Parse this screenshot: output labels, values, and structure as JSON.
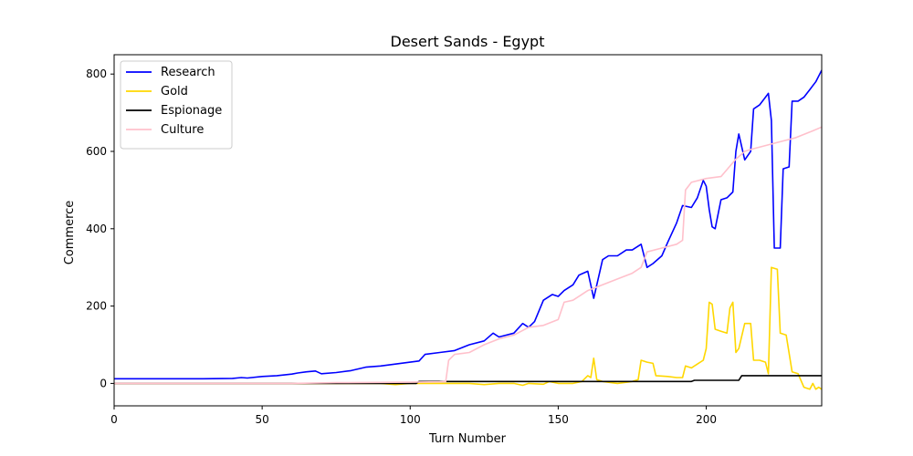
{
  "chart_data": {
    "type": "line",
    "title": "Desert Sands - Egypt",
    "xlabel": "Turn Number",
    "ylabel": "Commerce",
    "xlim": [
      0,
      239
    ],
    "ylim": [
      -58,
      850
    ],
    "xticks": [
      0,
      50,
      100,
      150,
      200
    ],
    "yticks": [
      0,
      200,
      400,
      600,
      800
    ],
    "grid": false,
    "legend_position": "upper-left",
    "series": [
      {
        "name": "Research",
        "color": "#0000ff",
        "points": [
          [
            0,
            12
          ],
          [
            10,
            12
          ],
          [
            20,
            12
          ],
          [
            30,
            12
          ],
          [
            40,
            13
          ],
          [
            43,
            15
          ],
          [
            45,
            14
          ],
          [
            50,
            18
          ],
          [
            55,
            20
          ],
          [
            60,
            24
          ],
          [
            62,
            27
          ],
          [
            65,
            30
          ],
          [
            68,
            32
          ],
          [
            70,
            25
          ],
          [
            75,
            28
          ],
          [
            80,
            33
          ],
          [
            85,
            42
          ],
          [
            90,
            45
          ],
          [
            95,
            50
          ],
          [
            100,
            55
          ],
          [
            103,
            58
          ],
          [
            105,
            75
          ],
          [
            110,
            80
          ],
          [
            115,
            85
          ],
          [
            120,
            100
          ],
          [
            125,
            110
          ],
          [
            128,
            130
          ],
          [
            130,
            120
          ],
          [
            135,
            130
          ],
          [
            138,
            155
          ],
          [
            140,
            145
          ],
          [
            142,
            160
          ],
          [
            145,
            215
          ],
          [
            148,
            230
          ],
          [
            150,
            225
          ],
          [
            152,
            240
          ],
          [
            155,
            255
          ],
          [
            157,
            280
          ],
          [
            160,
            290
          ],
          [
            162,
            220
          ],
          [
            165,
            320
          ],
          [
            167,
            330
          ],
          [
            170,
            330
          ],
          [
            173,
            345
          ],
          [
            175,
            345
          ],
          [
            178,
            360
          ],
          [
            180,
            300
          ],
          [
            182,
            310
          ],
          [
            185,
            330
          ],
          [
            187,
            365
          ],
          [
            190,
            415
          ],
          [
            192,
            460
          ],
          [
            195,
            455
          ],
          [
            197,
            480
          ],
          [
            199,
            525
          ],
          [
            200,
            510
          ],
          [
            201,
            450
          ],
          [
            202,
            405
          ],
          [
            203,
            400
          ],
          [
            205,
            475
          ],
          [
            207,
            480
          ],
          [
            209,
            495
          ],
          [
            210,
            600
          ],
          [
            211,
            645
          ],
          [
            213,
            578
          ],
          [
            215,
            600
          ],
          [
            216,
            710
          ],
          [
            218,
            720
          ],
          [
            220,
            740
          ],
          [
            221,
            750
          ],
          [
            222,
            680
          ],
          [
            223,
            350
          ],
          [
            225,
            350
          ],
          [
            226,
            555
          ],
          [
            228,
            560
          ],
          [
            229,
            730
          ],
          [
            231,
            730
          ],
          [
            233,
            740
          ],
          [
            235,
            760
          ],
          [
            237,
            780
          ],
          [
            239,
            810
          ]
        ]
      },
      {
        "name": "Gold",
        "color": "#ffd700",
        "points": [
          [
            0,
            0
          ],
          [
            20,
            0
          ],
          [
            40,
            0
          ],
          [
            60,
            0
          ],
          [
            80,
            0
          ],
          [
            90,
            0
          ],
          [
            95,
            -3
          ],
          [
            100,
            0
          ],
          [
            110,
            0
          ],
          [
            120,
            0
          ],
          [
            125,
            -3
          ],
          [
            130,
            0
          ],
          [
            135,
            0
          ],
          [
            138,
            -5
          ],
          [
            140,
            0
          ],
          [
            145,
            -2
          ],
          [
            147,
            5
          ],
          [
            150,
            0
          ],
          [
            155,
            0
          ],
          [
            158,
            5
          ],
          [
            160,
            20
          ],
          [
            161,
            15
          ],
          [
            162,
            65
          ],
          [
            163,
            10
          ],
          [
            165,
            5
          ],
          [
            170,
            0
          ],
          [
            175,
            5
          ],
          [
            177,
            10
          ],
          [
            178,
            60
          ],
          [
            180,
            55
          ],
          [
            182,
            52
          ],
          [
            183,
            20
          ],
          [
            187,
            18
          ],
          [
            190,
            15
          ],
          [
            192,
            15
          ],
          [
            193,
            45
          ],
          [
            195,
            40
          ],
          [
            197,
            50
          ],
          [
            199,
            60
          ],
          [
            200,
            90
          ],
          [
            201,
            210
          ],
          [
            202,
            205
          ],
          [
            203,
            140
          ],
          [
            205,
            135
          ],
          [
            207,
            130
          ],
          [
            208,
            195
          ],
          [
            209,
            210
          ],
          [
            210,
            80
          ],
          [
            211,
            90
          ],
          [
            213,
            155
          ],
          [
            215,
            155
          ],
          [
            216,
            60
          ],
          [
            218,
            60
          ],
          [
            220,
            55
          ],
          [
            221,
            25
          ],
          [
            222,
            300
          ],
          [
            224,
            295
          ],
          [
            225,
            130
          ],
          [
            227,
            125
          ],
          [
            229,
            30
          ],
          [
            231,
            25
          ],
          [
            233,
            -10
          ],
          [
            235,
            -15
          ],
          [
            236,
            0
          ],
          [
            237,
            -15
          ],
          [
            238,
            -10
          ],
          [
            239,
            -15
          ]
        ]
      },
      {
        "name": "Espionage",
        "color": "#000000",
        "points": [
          [
            0,
            0
          ],
          [
            102,
            0
          ],
          [
            103,
            5
          ],
          [
            150,
            5
          ],
          [
            195,
            5
          ],
          [
            196,
            8
          ],
          [
            211,
            8
          ],
          [
            212,
            20
          ],
          [
            239,
            20
          ]
        ]
      },
      {
        "name": "Culture",
        "color": "#ffc0cb",
        "points": [
          [
            0,
            0
          ],
          [
            40,
            0
          ],
          [
            60,
            0
          ],
          [
            75,
            2
          ],
          [
            100,
            3
          ],
          [
            110,
            4
          ],
          [
            112,
            5
          ],
          [
            113,
            60
          ],
          [
            115,
            75
          ],
          [
            120,
            80
          ],
          [
            125,
            100
          ],
          [
            130,
            115
          ],
          [
            135,
            125
          ],
          [
            140,
            145
          ],
          [
            145,
            150
          ],
          [
            150,
            165
          ],
          [
            152,
            210
          ],
          [
            155,
            215
          ],
          [
            160,
            240
          ],
          [
            165,
            255
          ],
          [
            170,
            270
          ],
          [
            175,
            285
          ],
          [
            178,
            300
          ],
          [
            180,
            340
          ],
          [
            185,
            350
          ],
          [
            190,
            360
          ],
          [
            192,
            370
          ],
          [
            193,
            500
          ],
          [
            195,
            520
          ],
          [
            200,
            530
          ],
          [
            205,
            535
          ],
          [
            210,
            580
          ],
          [
            213,
            600
          ],
          [
            215,
            605
          ],
          [
            220,
            615
          ],
          [
            225,
            625
          ],
          [
            230,
            635
          ],
          [
            235,
            650
          ],
          [
            239,
            663
          ]
        ]
      }
    ]
  }
}
